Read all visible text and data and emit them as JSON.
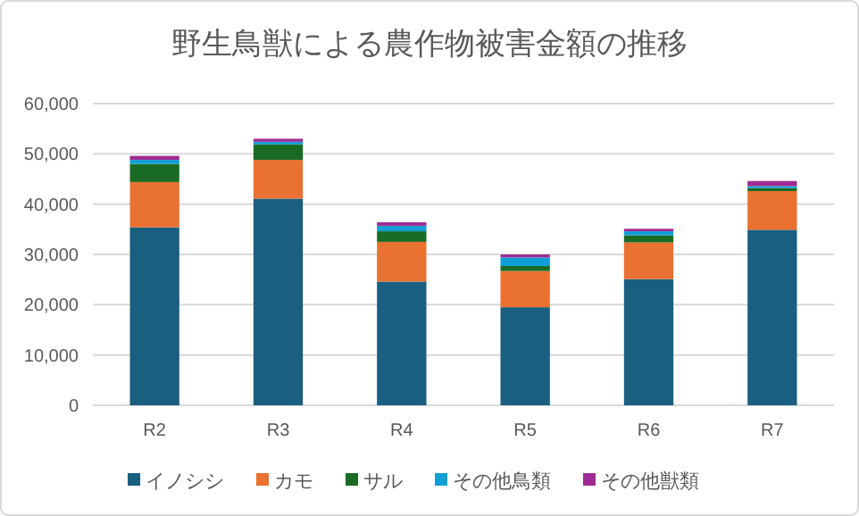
{
  "chart_data": {
    "type": "bar",
    "title": "野生鳥獣による農作物被害金額の推移",
    "categories": [
      "R2",
      "R3",
      "R4",
      "R5",
      "R6",
      "R7"
    ],
    "stacked": true,
    "series": [
      {
        "name": "イノシシ",
        "color": "#1a5e80",
        "values": [
          35400,
          41100,
          24600,
          19500,
          25100,
          34900
        ]
      },
      {
        "name": "カモ",
        "color": "#e97132",
        "values": [
          9000,
          7700,
          7900,
          7200,
          7300,
          7700
        ]
      },
      {
        "name": "サル",
        "color": "#196b24",
        "values": [
          3600,
          3100,
          2100,
          1000,
          1400,
          600
        ]
      },
      {
        "name": "その他鳥類",
        "color": "#0f9ed5",
        "values": [
          800,
          500,
          1100,
          1700,
          800,
          400
        ]
      },
      {
        "name": "その他獣類",
        "color": "#a02b93",
        "values": [
          800,
          600,
          700,
          600,
          500,
          1000
        ]
      }
    ],
    "ylim": [
      0,
      60000
    ],
    "yticks": [
      {
        "value": 0,
        "label": "0"
      },
      {
        "value": 10000,
        "label": "10,000"
      },
      {
        "value": 20000,
        "label": "20,000"
      },
      {
        "value": 30000,
        "label": "30,000"
      },
      {
        "value": 40000,
        "label": "40,000"
      },
      {
        "value": 50000,
        "label": "50,000"
      },
      {
        "value": 60000,
        "label": "60,000"
      }
    ],
    "grid": "y",
    "legend": "bottom"
  }
}
